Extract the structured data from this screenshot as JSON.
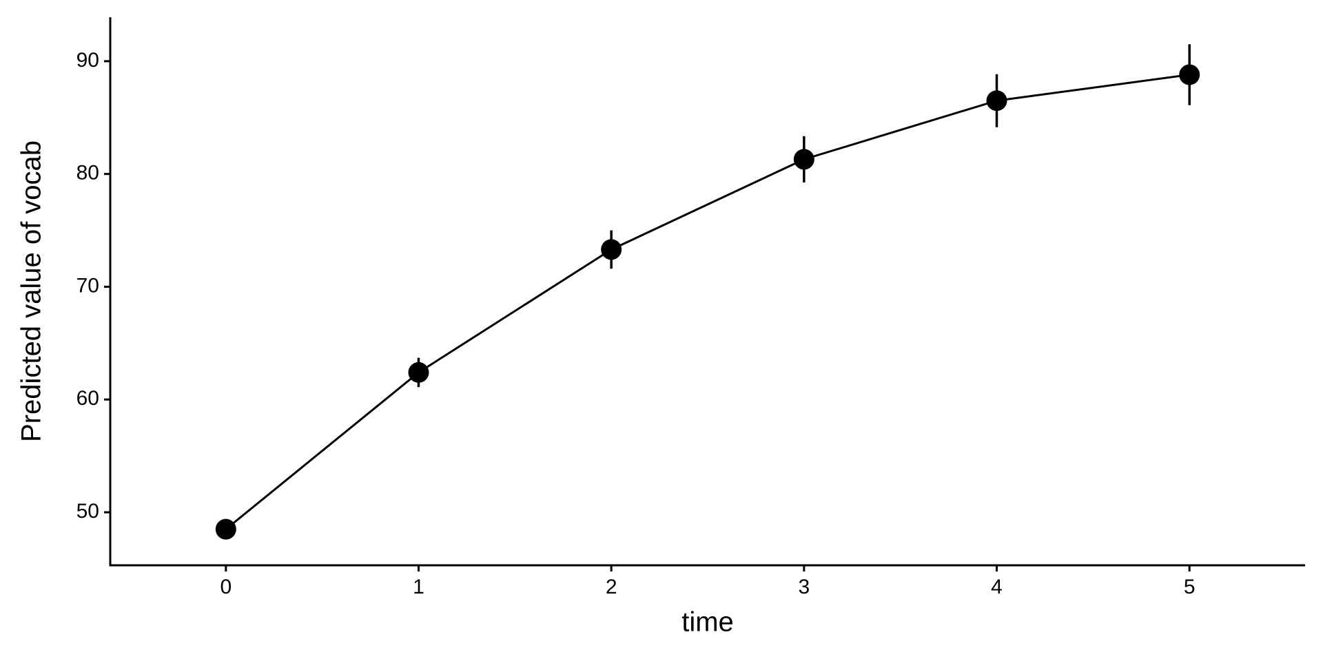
{
  "chart_data": {
    "type": "line",
    "x_label": "time",
    "y_label": "Predicted value of vocab",
    "x": [
      0,
      1,
      2,
      3,
      4,
      5
    ],
    "series": [
      {
        "name": "vocab",
        "color": "#000000",
        "values": [
          48.5,
          62.4,
          73.3,
          81.3,
          86.5,
          88.8
        ],
        "errors": [
          0.9,
          1.3,
          1.7,
          2.05,
          2.35,
          2.7
        ]
      }
    ],
    "xlim": [
      -0.6,
      5.6
    ],
    "xticks": [
      0,
      1,
      2,
      3,
      4,
      5
    ],
    "ylim": [
      45.3,
      93.9
    ],
    "yticks": [
      50,
      60,
      70,
      80,
      90
    ],
    "grid": false,
    "legend": false
  }
}
